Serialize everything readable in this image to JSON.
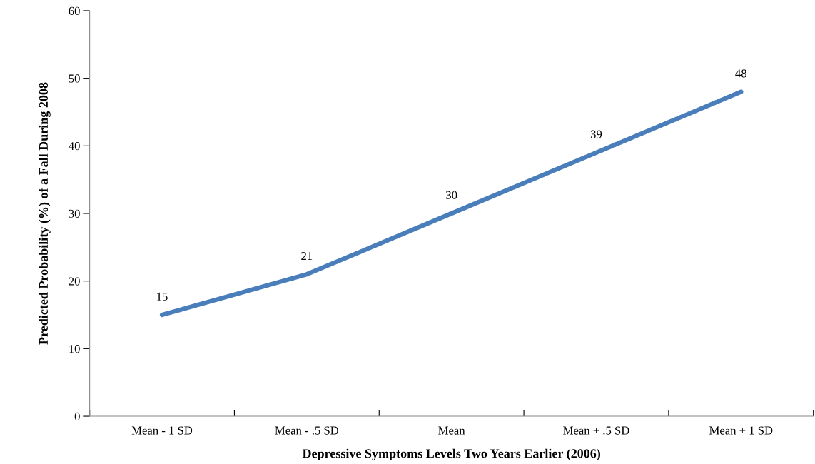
{
  "chart_data": {
    "type": "line",
    "xlabel": "Depressive Symptoms Levels Two Years Earlier (2006)",
    "ylabel": "Predicted Probability (%) of a Fall During 2008",
    "categories": [
      "Mean - 1 SD",
      "Mean - .5 SD",
      "Mean",
      "Mean + .5 SD",
      "Mean + 1 SD"
    ],
    "series": [
      {
        "color": "#4a7ebb",
        "values": [
          15,
          21,
          30,
          39,
          48
        ]
      }
    ],
    "ylim": [
      0,
      60
    ],
    "yticks": [
      0,
      10,
      20,
      30,
      40,
      50,
      60
    ],
    "grid": false,
    "marker": "none",
    "line_style": "solid",
    "data_labels": true
  }
}
